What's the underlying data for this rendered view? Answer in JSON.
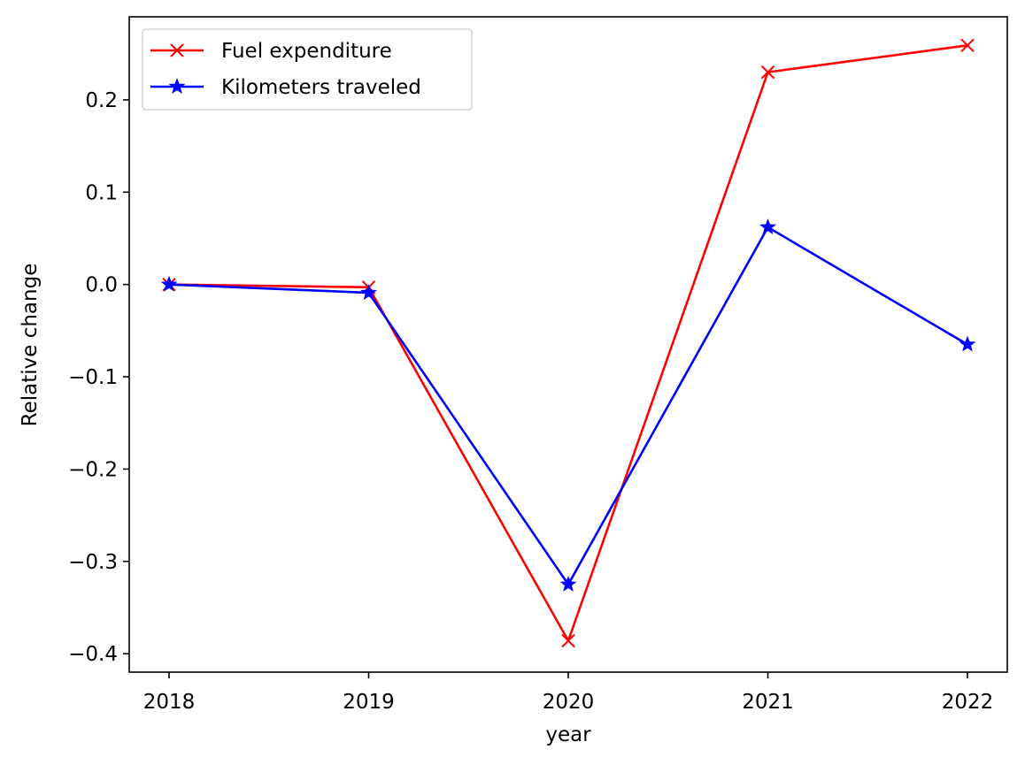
{
  "chart_data": {
    "type": "line",
    "title": "",
    "xlabel": "year",
    "ylabel": "Relative change",
    "x": [
      2018,
      2019,
      2020,
      2021,
      2022
    ],
    "xticks": [
      "2018",
      "2019",
      "2020",
      "2021",
      "2022"
    ],
    "yticks": [
      -0.4,
      -0.3,
      -0.2,
      -0.1,
      0.0,
      0.1,
      0.2
    ],
    "ytick_labels": [
      "−0.4",
      "−0.3",
      "−0.2",
      "−0.1",
      "0.0",
      "0.1",
      "0.2"
    ],
    "ylim": [
      -0.42,
      0.29
    ],
    "grid": false,
    "legend_position": "upper-left",
    "series": [
      {
        "name": "Fuel expenditure",
        "color": "#ff0000",
        "marker": "x",
        "values": [
          0.0,
          -0.003,
          -0.386,
          0.23,
          0.259
        ]
      },
      {
        "name": "Kilometers traveled",
        "color": "#0000ff",
        "marker": "star",
        "values": [
          0.0,
          -0.009,
          -0.325,
          0.062,
          -0.065
        ]
      }
    ]
  }
}
